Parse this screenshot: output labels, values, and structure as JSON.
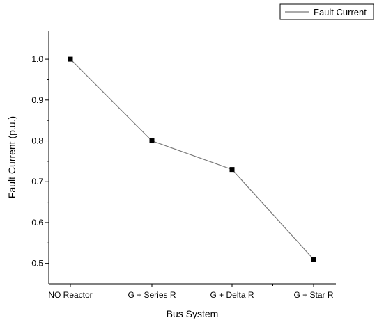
{
  "chart_data": {
    "type": "line",
    "categories": [
      "NO Reactor",
      "G + Series R",
      "G + Delta R",
      "G + Star R"
    ],
    "series": [
      {
        "name": "Fault Current",
        "values": [
          1.0,
          0.8,
          0.73,
          0.51
        ]
      }
    ],
    "xlabel": "Bus System",
    "ylabel": "Fault Current (p.u.)",
    "ylim": [
      0.45,
      1.07
    ],
    "yticks": [
      "0.5",
      "0.6",
      "0.7",
      "0.8",
      "0.9",
      "1.0"
    ],
    "grid": false,
    "legend": "top-right",
    "colors": {
      "line": "#777777",
      "marker": "#000000",
      "axis": "#000000"
    }
  }
}
